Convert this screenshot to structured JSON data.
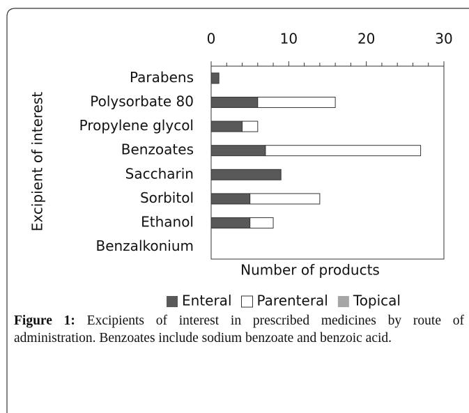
{
  "chart_data": {
    "type": "barh_stacked",
    "xlabel": "Number of products",
    "ylabel": "Excipient of interest",
    "categories": [
      "Parabens",
      "Polysorbate 80",
      "Propylene glycol",
      "Benzoates",
      "Saccharin",
      "Sorbitol",
      "Ethanol",
      "Benzalkonium"
    ],
    "series": [
      {
        "name": "Enteral",
        "color": "#595959",
        "values": [
          1,
          6,
          4,
          7,
          9,
          5,
          5,
          0
        ]
      },
      {
        "name": "Parenteral",
        "color": "#ffffff",
        "values": [
          0,
          10,
          2,
          20,
          0,
          9,
          3,
          0
        ]
      },
      {
        "name": "Topical",
        "color": "#a6a6a6",
        "values": [
          0,
          0,
          0,
          0,
          0,
          0,
          0,
          0
        ]
      }
    ],
    "xlim": [
      0,
      30
    ],
    "xticks": [
      0,
      10,
      20,
      30
    ],
    "xminorticks": [
      2,
      4,
      6,
      8,
      12,
      14,
      16,
      18,
      22,
      24,
      26,
      28
    ],
    "legend": "bottom"
  },
  "caption": {
    "label": "Figure 1:",
    "text": "Excipients of interest in prescribed medicines by route of administration. Benzoates include sodium benzoate and benzoic acid."
  }
}
